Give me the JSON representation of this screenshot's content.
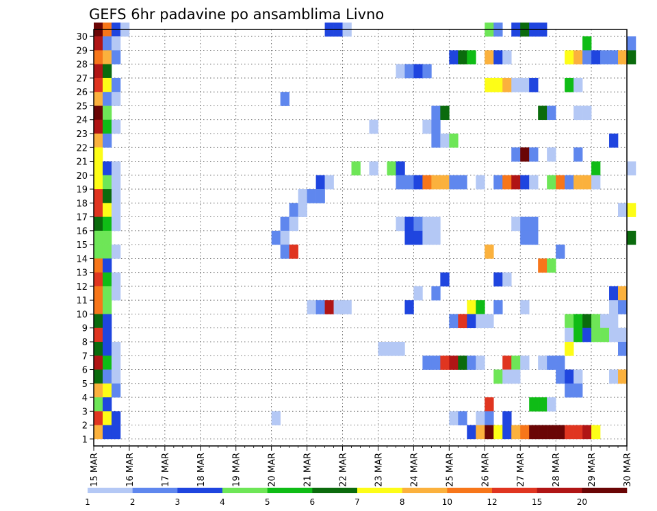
{
  "chart_data": {
    "type": "heatmap",
    "title": "GEFS 6hr padavine po ansamblima Livno",
    "x_ticks": [
      "15 MAR",
      "16 MAR",
      "17 MAR",
      "18 MAR",
      "19 MAR",
      "20 MAR",
      "21 MAR",
      "22 MAR",
      "23 MAR",
      "24 MAR",
      "25 MAR",
      "26 MAR",
      "27 MAR",
      "28 MAR",
      "29 MAR",
      "30 MAR"
    ],
    "y_ticks": [
      "1",
      "2",
      "3",
      "4",
      "5",
      "6",
      "7",
      "8",
      "9",
      "10",
      "11",
      "12",
      "13",
      "14",
      "15",
      "16",
      "17",
      "18",
      "19",
      "20",
      "21",
      "22",
      "23",
      "24",
      "25",
      "26",
      "27",
      "28",
      "29",
      "30"
    ],
    "x_range": [
      "15 MAR 00",
      "30 MAR 00"
    ],
    "y_range": [
      0,
      30
    ],
    "time_step_hours": 6,
    "grid": "dotted",
    "legend_position": "bottom",
    "color_scale": {
      "labels": [
        "1",
        "2",
        "3",
        "4",
        "5",
        "6",
        "7",
        "8",
        "10",
        "12",
        "15",
        "20"
      ],
      "colors": [
        "#b4c8f5",
        "#5f87ee",
        "#1f45df",
        "#6ee657",
        "#0fbc16",
        "#0b6b0d",
        "#fdfd17",
        "#fbb13d",
        "#f7761a",
        "#e03520",
        "#b01515",
        "#6a0505"
      ]
    },
    "cells": [
      [
        30,
        0,
        11
      ],
      [
        30,
        1,
        8
      ],
      [
        30,
        2,
        2
      ],
      [
        30,
        3,
        0
      ],
      [
        30,
        26,
        2
      ],
      [
        30,
        27,
        2
      ],
      [
        30,
        28,
        0
      ],
      [
        30,
        44,
        3
      ],
      [
        30,
        45,
        1
      ],
      [
        30,
        47,
        2
      ],
      [
        30,
        48,
        5
      ],
      [
        30,
        49,
        2
      ],
      [
        30,
        50,
        2
      ],
      [
        29,
        0,
        10
      ],
      [
        29,
        1,
        1
      ],
      [
        29,
        2,
        0
      ],
      [
        29,
        55,
        4
      ],
      [
        29,
        60,
        1
      ],
      [
        28,
        0,
        8
      ],
      [
        28,
        1,
        7
      ],
      [
        28,
        2,
        1
      ],
      [
        28,
        40,
        2
      ],
      [
        28,
        41,
        5
      ],
      [
        28,
        42,
        4
      ],
      [
        28,
        44,
        7
      ],
      [
        28,
        45,
        2
      ],
      [
        28,
        46,
        0
      ],
      [
        28,
        53,
        6
      ],
      [
        28,
        54,
        7
      ],
      [
        28,
        55,
        1
      ],
      [
        28,
        56,
        2
      ],
      [
        28,
        57,
        1
      ],
      [
        28,
        58,
        1
      ],
      [
        28,
        59,
        7
      ],
      [
        28,
        60,
        5
      ],
      [
        27,
        0,
        10
      ],
      [
        27,
        1,
        5
      ],
      [
        27,
        34,
        0
      ],
      [
        27,
        35,
        1
      ],
      [
        27,
        36,
        2
      ],
      [
        27,
        37,
        1
      ],
      [
        26,
        0,
        9
      ],
      [
        26,
        1,
        6
      ],
      [
        26,
        2,
        1
      ],
      [
        26,
        44,
        6
      ],
      [
        26,
        45,
        6
      ],
      [
        26,
        46,
        7
      ],
      [
        26,
        47,
        0
      ],
      [
        26,
        48,
        0
      ],
      [
        26,
        49,
        2
      ],
      [
        26,
        53,
        4
      ],
      [
        26,
        54,
        0
      ],
      [
        25,
        0,
        7
      ],
      [
        25,
        1,
        1
      ],
      [
        25,
        2,
        0
      ],
      [
        25,
        21,
        1
      ],
      [
        24,
        0,
        11
      ],
      [
        24,
        1,
        3
      ],
      [
        24,
        38,
        1
      ],
      [
        24,
        39,
        5
      ],
      [
        24,
        50,
        5
      ],
      [
        24,
        51,
        1
      ],
      [
        24,
        54,
        0
      ],
      [
        24,
        55,
        0
      ],
      [
        23,
        0,
        10
      ],
      [
        23,
        1,
        4
      ],
      [
        23,
        2,
        0
      ],
      [
        23,
        31,
        0
      ],
      [
        23,
        37,
        0
      ],
      [
        23,
        38,
        1
      ],
      [
        22,
        0,
        7
      ],
      [
        22,
        1,
        1
      ],
      [
        22,
        38,
        1
      ],
      [
        22,
        39,
        0
      ],
      [
        22,
        40,
        3
      ],
      [
        22,
        58,
        2
      ],
      [
        21,
        0,
        6
      ],
      [
        21,
        47,
        1
      ],
      [
        21,
        48,
        11
      ],
      [
        21,
        49,
        1
      ],
      [
        21,
        51,
        0
      ],
      [
        21,
        54,
        1
      ],
      [
        20,
        0,
        6
      ],
      [
        20,
        1,
        2
      ],
      [
        20,
        2,
        0
      ],
      [
        20,
        29,
        3
      ],
      [
        20,
        31,
        0
      ],
      [
        20,
        33,
        3
      ],
      [
        20,
        34,
        2
      ],
      [
        20,
        56,
        4
      ],
      [
        20,
        60,
        0
      ],
      [
        19,
        0,
        6
      ],
      [
        19,
        1,
        3
      ],
      [
        19,
        2,
        0
      ],
      [
        19,
        25,
        2
      ],
      [
        19,
        26,
        0
      ],
      [
        19,
        34,
        1
      ],
      [
        19,
        35,
        1
      ],
      [
        19,
        36,
        2
      ],
      [
        19,
        37,
        8
      ],
      [
        19,
        38,
        7
      ],
      [
        19,
        39,
        7
      ],
      [
        19,
        40,
        1
      ],
      [
        19,
        41,
        1
      ],
      [
        19,
        43,
        0
      ],
      [
        19,
        45,
        1
      ],
      [
        19,
        46,
        8
      ],
      [
        19,
        47,
        10
      ],
      [
        19,
        48,
        2
      ],
      [
        19,
        49,
        0
      ],
      [
        19,
        51,
        3
      ],
      [
        19,
        52,
        8
      ],
      [
        19,
        53,
        1
      ],
      [
        19,
        54,
        7
      ],
      [
        19,
        55,
        7
      ],
      [
        19,
        56,
        0
      ],
      [
        18,
        0,
        9
      ],
      [
        18,
        1,
        5
      ],
      [
        18,
        2,
        0
      ],
      [
        18,
        23,
        0
      ],
      [
        18,
        24,
        1
      ],
      [
        18,
        25,
        1
      ],
      [
        17,
        0,
        9
      ],
      [
        17,
        1,
        6
      ],
      [
        17,
        2,
        0
      ],
      [
        17,
        22,
        1
      ],
      [
        17,
        23,
        0
      ],
      [
        17,
        59,
        0
      ],
      [
        17,
        60,
        6
      ],
      [
        16,
        0,
        5
      ],
      [
        16,
        1,
        4
      ],
      [
        16,
        2,
        0
      ],
      [
        16,
        21,
        1
      ],
      [
        16,
        22,
        0
      ],
      [
        16,
        34,
        0
      ],
      [
        16,
        35,
        2
      ],
      [
        16,
        36,
        1
      ],
      [
        16,
        37,
        0
      ],
      [
        16,
        38,
        0
      ],
      [
        16,
        47,
        0
      ],
      [
        16,
        48,
        1
      ],
      [
        16,
        49,
        1
      ],
      [
        15,
        0,
        3
      ],
      [
        15,
        1,
        3
      ],
      [
        15,
        20,
        1
      ],
      [
        15,
        21,
        0
      ],
      [
        15,
        35,
        2
      ],
      [
        15,
        36,
        2
      ],
      [
        15,
        37,
        0
      ],
      [
        15,
        38,
        0
      ],
      [
        15,
        48,
        1
      ],
      [
        15,
        49,
        1
      ],
      [
        15,
        60,
        5
      ],
      [
        14,
        0,
        3
      ],
      [
        14,
        1,
        3
      ],
      [
        14,
        2,
        0
      ],
      [
        14,
        21,
        1
      ],
      [
        14,
        22,
        9
      ],
      [
        14,
        44,
        7
      ],
      [
        14,
        52,
        1
      ],
      [
        13,
        0,
        8
      ],
      [
        13,
        1,
        2
      ],
      [
        13,
        50,
        8
      ],
      [
        13,
        51,
        3
      ],
      [
        12,
        0,
        9
      ],
      [
        12,
        1,
        4
      ],
      [
        12,
        2,
        0
      ],
      [
        12,
        39,
        2
      ],
      [
        12,
        45,
        2
      ],
      [
        12,
        46,
        0
      ],
      [
        11,
        0,
        8
      ],
      [
        11,
        1,
        3
      ],
      [
        11,
        2,
        0
      ],
      [
        11,
        36,
        0
      ],
      [
        11,
        38,
        1
      ],
      [
        11,
        58,
        2
      ],
      [
        11,
        59,
        7
      ],
      [
        10,
        0,
        8
      ],
      [
        10,
        1,
        3
      ],
      [
        10,
        24,
        0
      ],
      [
        10,
        25,
        1
      ],
      [
        10,
        26,
        10
      ],
      [
        10,
        27,
        0
      ],
      [
        10,
        28,
        0
      ],
      [
        10,
        35,
        2
      ],
      [
        10,
        42,
        6
      ],
      [
        10,
        43,
        4
      ],
      [
        10,
        45,
        1
      ],
      [
        10,
        48,
        0
      ],
      [
        10,
        58,
        0
      ],
      [
        10,
        59,
        1
      ],
      [
        9,
        0,
        5
      ],
      [
        9,
        1,
        2
      ],
      [
        9,
        40,
        1
      ],
      [
        9,
        41,
        9
      ],
      [
        9,
        42,
        2
      ],
      [
        9,
        43,
        0
      ],
      [
        9,
        44,
        0
      ],
      [
        9,
        53,
        3
      ],
      [
        9,
        54,
        4
      ],
      [
        9,
        55,
        5
      ],
      [
        9,
        56,
        3
      ],
      [
        9,
        57,
        0
      ],
      [
        9,
        58,
        0
      ],
      [
        8,
        0,
        9
      ],
      [
        8,
        1,
        2
      ],
      [
        8,
        53,
        0
      ],
      [
        8,
        54,
        4
      ],
      [
        8,
        55,
        2
      ],
      [
        8,
        56,
        3
      ],
      [
        8,
        57,
        3
      ],
      [
        8,
        58,
        0
      ],
      [
        8,
        59,
        0
      ],
      [
        7,
        0,
        5
      ],
      [
        7,
        1,
        2
      ],
      [
        7,
        2,
        0
      ],
      [
        7,
        32,
        0
      ],
      [
        7,
        33,
        0
      ],
      [
        7,
        34,
        0
      ],
      [
        7,
        53,
        6
      ],
      [
        7,
        59,
        1
      ],
      [
        6,
        0,
        10
      ],
      [
        6,
        1,
        4
      ],
      [
        6,
        2,
        0
      ],
      [
        6,
        37,
        1
      ],
      [
        6,
        38,
        1
      ],
      [
        6,
        39,
        9
      ],
      [
        6,
        40,
        10
      ],
      [
        6,
        41,
        5
      ],
      [
        6,
        42,
        1
      ],
      [
        6,
        43,
        0
      ],
      [
        6,
        46,
        9
      ],
      [
        6,
        47,
        3
      ],
      [
        6,
        48,
        0
      ],
      [
        6,
        50,
        0
      ],
      [
        6,
        51,
        1
      ],
      [
        6,
        52,
        1
      ],
      [
        5,
        0,
        5
      ],
      [
        5,
        1,
        1
      ],
      [
        5,
        2,
        0
      ],
      [
        5,
        45,
        3
      ],
      [
        5,
        46,
        0
      ],
      [
        5,
        47,
        0
      ],
      [
        5,
        52,
        1
      ],
      [
        5,
        53,
        2
      ],
      [
        5,
        54,
        0
      ],
      [
        5,
        58,
        0
      ],
      [
        5,
        59,
        7
      ],
      [
        4,
        0,
        7
      ],
      [
        4,
        1,
        6
      ],
      [
        4,
        2,
        1
      ],
      [
        4,
        53,
        1
      ],
      [
        4,
        54,
        1
      ],
      [
        3,
        0,
        3
      ],
      [
        3,
        1,
        2
      ],
      [
        3,
        44,
        9
      ],
      [
        3,
        49,
        4
      ],
      [
        3,
        50,
        4
      ],
      [
        3,
        51,
        0
      ],
      [
        2,
        0,
        9
      ],
      [
        2,
        1,
        6
      ],
      [
        2,
        2,
        2
      ],
      [
        2,
        20,
        0
      ],
      [
        2,
        40,
        0
      ],
      [
        2,
        41,
        1
      ],
      [
        2,
        43,
        0
      ],
      [
        2,
        44,
        1
      ],
      [
        2,
        46,
        2
      ],
      [
        1,
        0,
        7
      ],
      [
        1,
        1,
        2
      ],
      [
        1,
        2,
        2
      ],
      [
        1,
        42,
        2
      ],
      [
        1,
        43,
        7
      ],
      [
        1,
        44,
        11
      ],
      [
        1,
        45,
        6
      ],
      [
        1,
        46,
        2
      ],
      [
        1,
        47,
        7
      ],
      [
        1,
        48,
        8
      ],
      [
        1,
        49,
        11
      ],
      [
        1,
        50,
        11
      ],
      [
        1,
        51,
        11
      ],
      [
        1,
        52,
        11
      ],
      [
        1,
        53,
        9
      ],
      [
        1,
        54,
        9
      ],
      [
        1,
        55,
        10
      ],
      [
        1,
        56,
        6
      ]
    ]
  }
}
